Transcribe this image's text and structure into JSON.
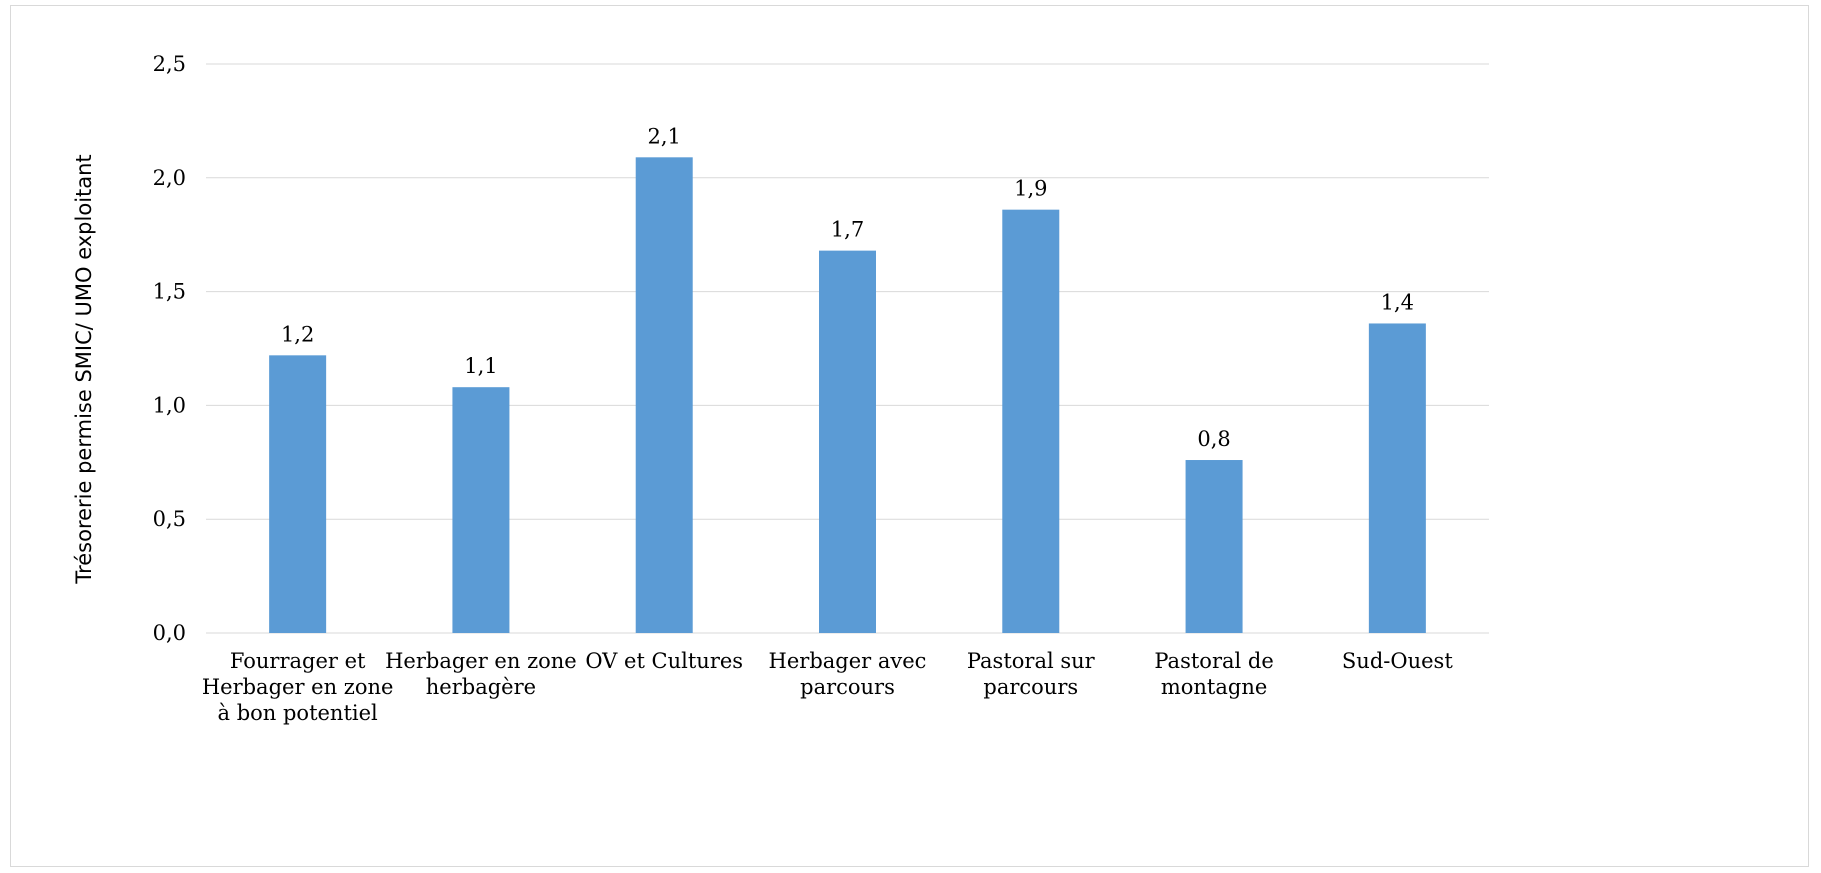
{
  "chart_data": {
    "type": "bar",
    "categories": [
      [
        "Fourrager et",
        "Herbager en zone",
        "à bon potentiel"
      ],
      [
        "Herbager en zone",
        "herbagère"
      ],
      [
        "OV et Cultures"
      ],
      [
        "Herbager avec",
        "parcours"
      ],
      [
        "Pastoral sur",
        "parcours"
      ],
      [
        "Pastoral de",
        "montagne"
      ],
      [
        "Sud-Ouest"
      ]
    ],
    "values": [
      1.22,
      1.08,
      2.09,
      1.68,
      1.86,
      0.76,
      1.36
    ],
    "data_labels": [
      "1,2",
      "1,1",
      "2,1",
      "1,7",
      "1,9",
      "0,8",
      "1,4"
    ],
    "ylabel": "Trésorerie permise SMIC/ UMO exploitant",
    "ylim": [
      0,
      2.5
    ],
    "yticks": [
      0,
      0.5,
      1.0,
      1.5,
      2.0,
      2.5
    ],
    "ytick_labels": [
      "0,0",
      "0,5",
      "1,0",
      "1,5",
      "2,0",
      "2,5"
    ],
    "grid": true,
    "legend": "none",
    "bar_color": "#5b9bd5",
    "grid_color": "#d9d9d9"
  }
}
